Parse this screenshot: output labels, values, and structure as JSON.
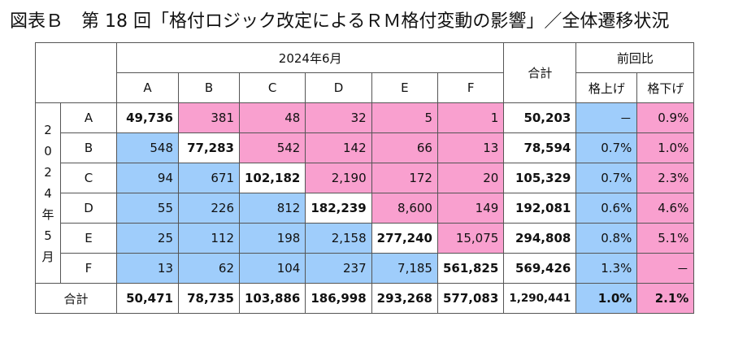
{
  "title": "図表Ｂ　第 18 回「格付ロジック改定によるＲＭ格付変動の影響」／全体遷移状況",
  "header": {
    "period": "2024年6月",
    "columns": [
      "A",
      "B",
      "C",
      "D",
      "E",
      "F"
    ],
    "total": "合計",
    "prev_ratio": "前回比",
    "up": "格上げ",
    "down": "格下げ"
  },
  "row_group_label": [
    "2",
    "0",
    "2",
    "4",
    "年",
    "5",
    "月"
  ],
  "rows": [
    {
      "label": "A",
      "values": [
        "49,736",
        "381",
        "48",
        "32",
        "5",
        "1"
      ],
      "total": "50,203",
      "up": "－",
      "down": "0.9%"
    },
    {
      "label": "B",
      "values": [
        "548",
        "77,283",
        "542",
        "142",
        "66",
        "13"
      ],
      "total": "78,594",
      "up": "0.7%",
      "down": "1.0%"
    },
    {
      "label": "C",
      "values": [
        "94",
        "671",
        "102,182",
        "2,190",
        "172",
        "20"
      ],
      "total": "105,329",
      "up": "0.7%",
      "down": "2.3%"
    },
    {
      "label": "D",
      "values": [
        "55",
        "226",
        "812",
        "182,239",
        "8,600",
        "149"
      ],
      "total": "192,081",
      "up": "0.6%",
      "down": "4.6%"
    },
    {
      "label": "E",
      "values": [
        "25",
        "112",
        "198",
        "2,158",
        "277,240",
        "15,075"
      ],
      "total": "294,808",
      "up": "0.8%",
      "down": "5.1%"
    },
    {
      "label": "F",
      "values": [
        "13",
        "62",
        "104",
        "237",
        "7,185",
        "561,825"
      ],
      "total": "569,426",
      "up": "1.3%",
      "down": "－"
    }
  ],
  "footer": {
    "label": "合計",
    "values": [
      "50,471",
      "78,735",
      "103,886",
      "186,998",
      "293,268",
      "577,083"
    ],
    "total": "1,290,441",
    "up": "1.0%",
    "down": "2.1%"
  },
  "colors": {
    "blue": "#9fcdfb",
    "pink": "#f9a0cf"
  }
}
